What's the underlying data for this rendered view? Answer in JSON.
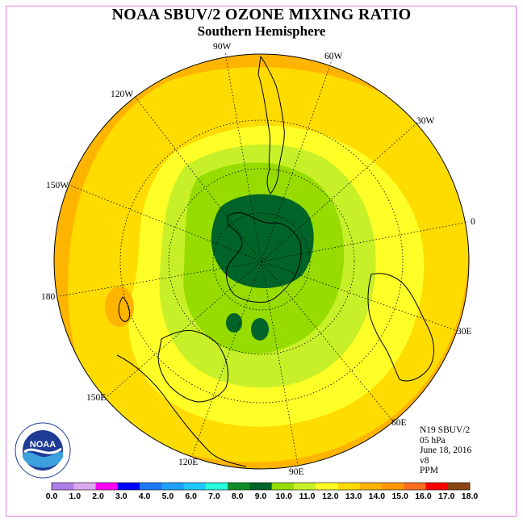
{
  "title": "NOAA SBUV/2 OZONE MIXING RATIO",
  "subtitle": "Southern Hemisphere",
  "longitude_labels": [
    "90W",
    "60W",
    "120W",
    "30W",
    "150W",
    "0",
    "180",
    "30E",
    "150E",
    "60E",
    "120E",
    "90E"
  ],
  "info": {
    "instrument": "N19 SBUV/2",
    "level": "05 hPa",
    "date": "June 18, 2016",
    "version": "v8",
    "units": "PPM"
  },
  "colorbar": {
    "ticks": [
      "0.0",
      "1.0",
      "2.0",
      "3.0",
      "4.0",
      "5.0",
      "6.0",
      "7.0",
      "8.0",
      "9.0",
      "10.0",
      "11.0",
      "12.0",
      "13.0",
      "14.0",
      "15.0",
      "16.0",
      "17.0",
      "18.0"
    ],
    "colors": [
      "#b07ee8",
      "#dca8f0",
      "#ff00ff",
      "#0000ff",
      "#1e78ff",
      "#1ea0ff",
      "#1ec8ff",
      "#28ffdc",
      "#108c28",
      "#006428",
      "#96dc00",
      "#c8f028",
      "#ffff28",
      "#ffdc00",
      "#ffb400",
      "#ff9600",
      "#ff6e1e",
      "#ff0000",
      "#8b4513"
    ]
  },
  "logo": {
    "text": "NOAA",
    "ring_text": "NATIONAL OCEANIC AND ATMOSPHERIC ADMINISTRATION · U.S. DEPARTMENT OF COMMERCE"
  },
  "map_colors": {
    "band_13_14": "#ffdc00",
    "band_14_15": "#ffb400",
    "band_15_16": "#ff9600",
    "band_12_13": "#ffff28",
    "band_11_12": "#c8f028",
    "band_10_11": "#96dc00",
    "band_9_10": "#006428"
  }
}
